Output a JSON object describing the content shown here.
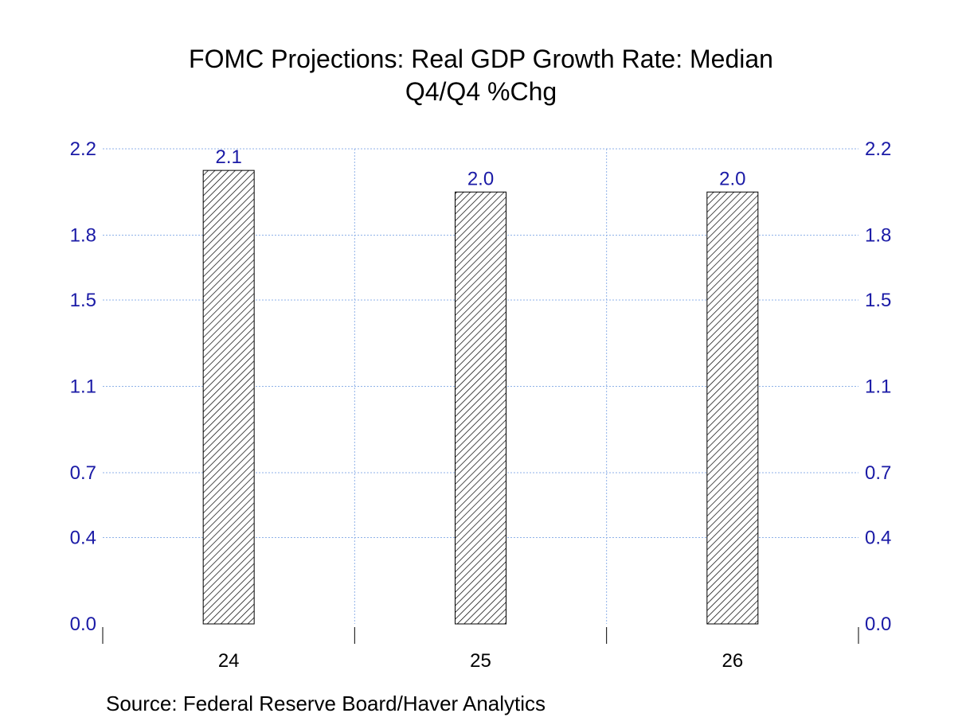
{
  "chart_data": {
    "type": "bar",
    "title": "FOMC Projections: Real GDP Growth Rate: Median",
    "subtitle": "Q4/Q4 %Chg",
    "categories": [
      "24",
      "25",
      "26"
    ],
    "values": [
      2.1,
      2.0,
      2.0
    ],
    "data_labels": [
      "2.1",
      "2.0",
      "2.0"
    ],
    "ylim": [
      0.0,
      2.2
    ],
    "yticks": [
      0.0,
      0.4,
      0.7,
      1.1,
      1.5,
      1.8,
      2.2
    ],
    "ytick_labels": [
      "0.0",
      "0.4",
      "0.7",
      "1.1",
      "1.5",
      "1.8",
      "2.2"
    ],
    "axes": "left-and-right",
    "grid": true,
    "colors": {
      "bar_outline": "#000000",
      "ticks": "#1a1aa6",
      "grid": "#8fb2e8"
    },
    "pattern": "diagonal-hatch"
  },
  "source": "Source:  Federal Reserve Board/Haver Analytics"
}
